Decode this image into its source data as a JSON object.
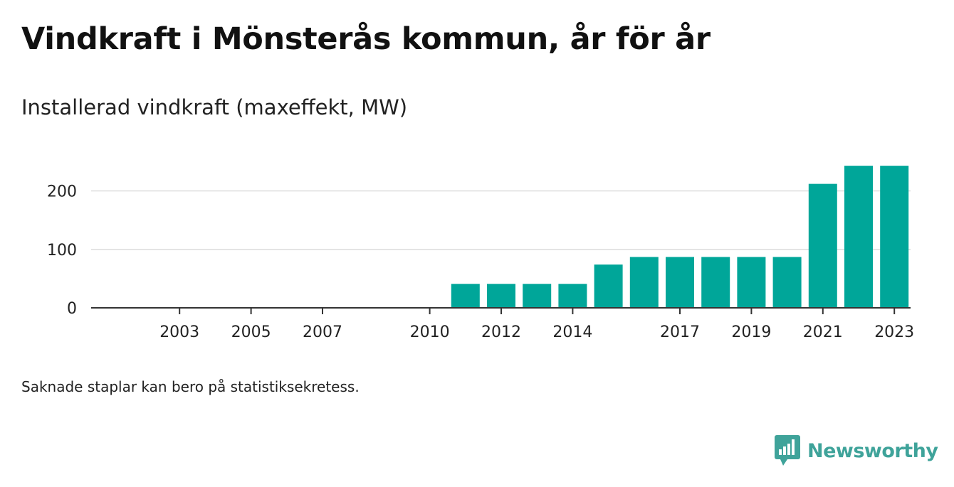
{
  "title": "Vindkraft i Mönsterås kommun, år för år",
  "subtitle": "Installerad vindkraft (maxeffekt, MW)",
  "note": "Saknade staplar kan bero på statistiksekretess.",
  "brand": {
    "name": "Newsworthy",
    "icon": "newsworthy-logo-icon",
    "color": "#3fa39a"
  },
  "colors": {
    "bar": "#00a699",
    "axis": "#333333",
    "grid": "#dddddd",
    "text": "#222222"
  },
  "chart_data": {
    "type": "bar",
    "title": "Vindkraft i Mönsterås kommun, år för år",
    "ylabel": "Installerad vindkraft (maxeffekt, MW)",
    "xlabel": "",
    "categories": [
      2002,
      2003,
      2004,
      2005,
      2006,
      2007,
      2008,
      2009,
      2010,
      2011,
      2012,
      2013,
      2014,
      2015,
      2016,
      2017,
      2018,
      2019,
      2020,
      2021,
      2022,
      2023
    ],
    "values": [
      0,
      0,
      0,
      0,
      0,
      0,
      0,
      0,
      0,
      41,
      41,
      41,
      41,
      74,
      87,
      87,
      87,
      87,
      87,
      212,
      243,
      243
    ],
    "x_tick_labels": [
      "2003",
      "2005",
      "2007",
      "2010",
      "2012",
      "2014",
      "2017",
      "2019",
      "2021",
      "2023"
    ],
    "y_ticks": [
      0,
      100,
      200
    ],
    "ylim": [
      0,
      250
    ],
    "grid": true,
    "legend": "none"
  }
}
